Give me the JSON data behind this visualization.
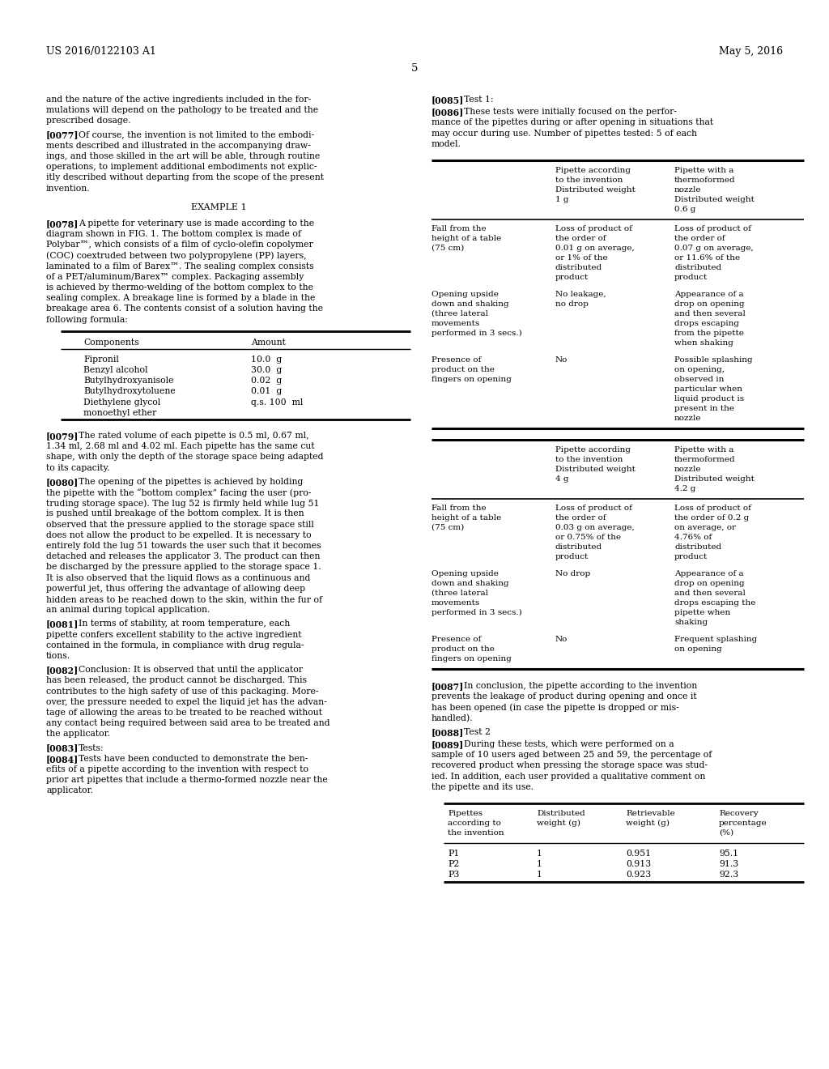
{
  "page_num": "5",
  "header_left": "US 2016/0122103 A1",
  "header_right": "May 5, 2016",
  "bg_color": "#ffffff",
  "text_color": "#000000",
  "table1_components": [
    "Fipronil",
    "Benzyl alcohol",
    "Butylhydroxyanisole",
    "Butylhydroxytoluene",
    "Diethylene glycol\nmonoethyl ether"
  ],
  "table1_amounts": [
    "10.0  g",
    "30.0  g",
    "0.02  g",
    "0.01  g",
    "q.s. 100  ml"
  ],
  "test2_table": {
    "headers": [
      "Pipettes\naccording to\nthe invention",
      "Distributed\nweight (g)",
      "Retrievable\nweight (g)",
      "Recovery\npercentage\n(%)"
    ],
    "rows": [
      [
        "P1",
        "1",
        "0.951",
        "95.1"
      ],
      [
        "P2",
        "1",
        "0.913",
        "91.3"
      ],
      [
        "P3",
        "1",
        "0.923",
        "92.3"
      ]
    ]
  }
}
